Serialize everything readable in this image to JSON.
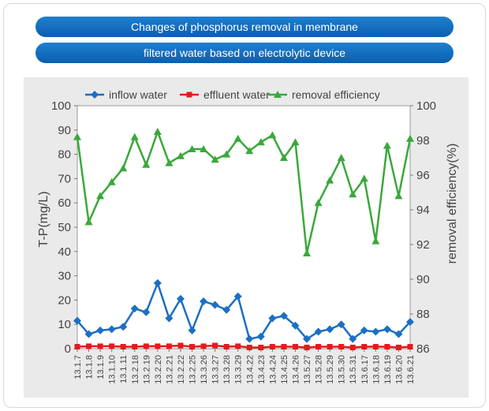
{
  "header": {
    "line1": "Changes of phosphorus removal in membrane",
    "line2": "filtered water based on electrolytic device"
  },
  "colors": {
    "banner": "#0b5fae",
    "inflow": "#1b6fc4",
    "effluent": "#e41a1c",
    "removal": "#3aa83a",
    "panel": "#eaeaea"
  },
  "chart_data": {
    "type": "line",
    "categories": [
      "13.1.7",
      "13.1.8",
      "13.1.9",
      "13.1.10",
      "13.1.11",
      "13.2.18",
      "13.2.19",
      "13.2.20",
      "13.2.21",
      "13.2.22",
      "13.2.25",
      "13.3.26",
      "13.3.27",
      "13.3.28",
      "13.3.29",
      "13.4.22",
      "13.4.23",
      "13.4.24",
      "13.4.25",
      "13.4.26",
      "13.5.27",
      "13.5.28",
      "13.5.29",
      "13.5.30",
      "13.5.31",
      "13.6.17",
      "13.6.18",
      "13.6.19",
      "13.6.20",
      "13.6.21"
    ],
    "ylabel": "T-P(mg/L)",
    "ylabel_right": "removal efficiency(%)",
    "ylim": [
      0,
      100
    ],
    "y_ticks": [
      0,
      10,
      20,
      30,
      40,
      50,
      60,
      70,
      80,
      90,
      100
    ],
    "ylim_right": [
      86,
      100
    ],
    "y_ticks_right": [
      86,
      88,
      90,
      92,
      94,
      96,
      98,
      100
    ],
    "legend_position": "top",
    "series": [
      {
        "name": "inflow water",
        "axis": "left",
        "marker": "diamond",
        "values": [
          11.5,
          6,
          7.5,
          8,
          9,
          16.5,
          15,
          27,
          12.5,
          20.5,
          7.5,
          19.5,
          18,
          16,
          21.5,
          4,
          5,
          12.5,
          13.5,
          9.5,
          4,
          7,
          8,
          10,
          4,
          7.5,
          7,
          8,
          6,
          11
        ]
      },
      {
        "name": "effluent water",
        "axis": "left",
        "marker": "square",
        "values": [
          0.8,
          1,
          1,
          1,
          0.8,
          0.8,
          1,
          1,
          1,
          1.3,
          0.8,
          1,
          1.3,
          0.8,
          1,
          0.5,
          0.5,
          0.8,
          0.8,
          0.8,
          0.5,
          0.8,
          0.8,
          0.8,
          0.5,
          0.8,
          0.8,
          0.8,
          0.5,
          0.8
        ]
      },
      {
        "name": "removal efficiency",
        "axis": "right",
        "marker": "triangle",
        "values": [
          98.2,
          93.3,
          94.8,
          95.6,
          96.4,
          98.2,
          96.6,
          98.5,
          96.7,
          97.1,
          97.5,
          97.5,
          96.9,
          97.2,
          98.1,
          97.4,
          97.9,
          98.3,
          97.0,
          97.9,
          91.5,
          94.4,
          95.7,
          97.0,
          94.9,
          95.8,
          92.2,
          97.7,
          94.8,
          98.1
        ]
      }
    ]
  }
}
